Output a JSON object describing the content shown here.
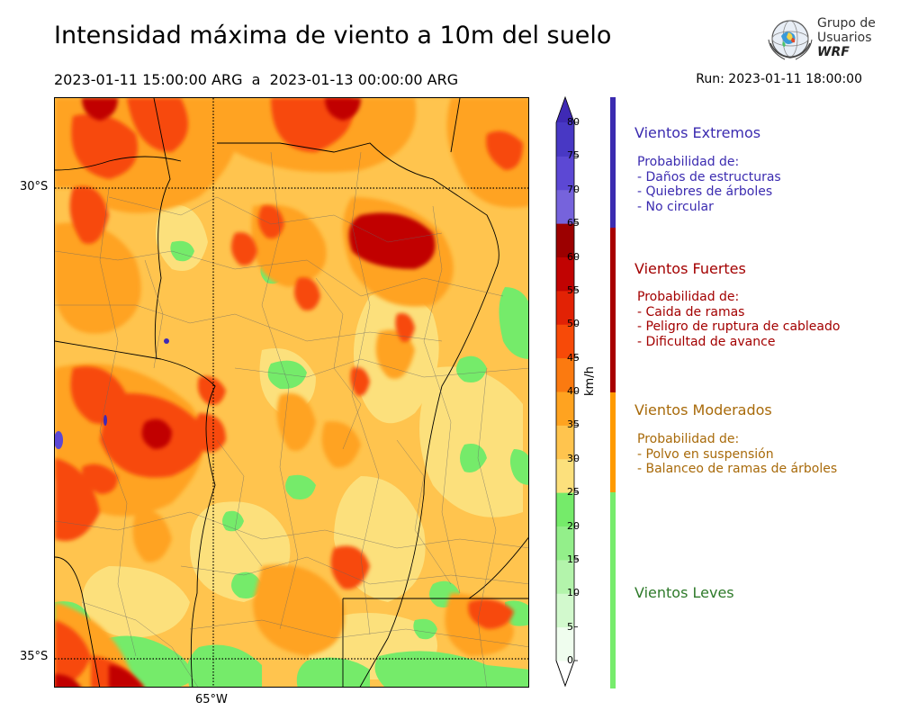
{
  "header": {
    "title": "Intensidad máxima de viento a 10m del suelo",
    "period": "2023-01-11 15:00:00 ARG  a  2023-01-13 00:00:00 ARG",
    "run": "Run: 2023-01-11 18:00:00"
  },
  "logo": {
    "line1": "Grupo de",
    "line2": "Usuarios",
    "line3": "WRF"
  },
  "axes": {
    "lat_labels": [
      "30°S",
      "35°S"
    ],
    "lon_labels": [
      "65°W"
    ]
  },
  "colorbar": {
    "unit": "km/h",
    "ticks": [
      "0",
      "5",
      "10",
      "15",
      "20",
      "25",
      "30",
      "35",
      "40",
      "45",
      "50",
      "55",
      "60",
      "65",
      "70",
      "75",
      "80"
    ],
    "colors": [
      "#effdee",
      "#d2f9cd",
      "#b3f4ab",
      "#93ef8a",
      "#75eb6a",
      "#fce07c",
      "#ffc44e",
      "#ffa320",
      "#fb7a10",
      "#f74a08",
      "#e22205",
      "#c10302",
      "#9c0000",
      "#7663dc",
      "#5c48d4",
      "#4838c4",
      "#3f2ab5"
    ]
  },
  "legend": {
    "categories": [
      {
        "title": "Vientos Extremos",
        "color": "#3b2bb0",
        "text_color": "#3b2bb0",
        "lines": [
          "Probabilidad de:",
          "- Daños de estructuras",
          "- Quiebres de árboles",
          "- No circular"
        ]
      },
      {
        "title": "Vientos Fuertes",
        "color": "#a80000",
        "text_color": "#a30000",
        "lines": [
          "Probabilidad de:",
          "- Caida de ramas",
          "- Peligro de ruptura de cableado",
          "- Dificultad de avance"
        ]
      },
      {
        "title": "Vientos Moderados",
        "color": "#ff9a00",
        "text_color": "#a86a0a",
        "lines": [
          "Probabilidad de:",
          "- Polvo en suspensión",
          "- Balanceo de ramas de árboles"
        ]
      },
      {
        "title": "Vientos Leves",
        "color": "#77ec6c",
        "text_color": "#2e7a2a",
        "lines": []
      }
    ]
  }
}
